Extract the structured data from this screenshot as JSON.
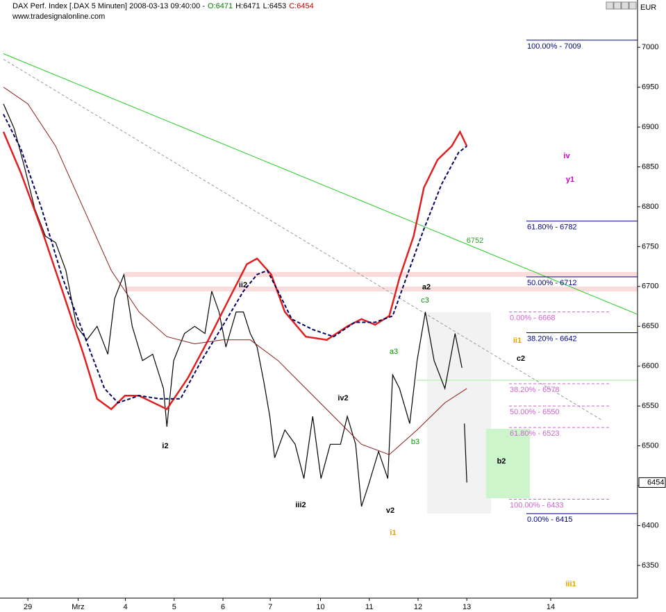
{
  "chart_data": {
    "type": "line",
    "title": "DAX Perf. Index [.DAX  5 Minuten] 2008-03-13 09:40:00 -",
    "ohlc": [
      {
        "label": "O:6471",
        "color": "#008000"
      },
      {
        "label": "H:6471",
        "color": "#000000"
      },
      {
        "label": "L:6453",
        "color": "#000000"
      },
      {
        "label": "C:6454",
        "color": "#cc0000"
      }
    ],
    "source": "www.tradesignalonline.com",
    "currency": "EUR",
    "last_price": 6454,
    "xlim": [
      -0.5,
      12.5
    ],
    "xticks": [
      {
        "value": 0,
        "label": "29"
      },
      {
        "value": 1.03,
        "label": "Mrz"
      },
      {
        "value": 2,
        "label": "4"
      },
      {
        "value": 3,
        "label": "5"
      },
      {
        "value": 4,
        "label": "6"
      },
      {
        "value": 4.97,
        "label": "7"
      },
      {
        "value": 6,
        "label": "10"
      },
      {
        "value": 7,
        "label": "11"
      },
      {
        "value": 8,
        "label": "12"
      },
      {
        "value": 9,
        "label": "13"
      },
      {
        "value": 10.72,
        "label": "14"
      }
    ],
    "ylim": [
      6309,
      7055
    ],
    "yticks": [
      6350,
      6400,
      6450,
      6500,
      6550,
      6600,
      6650,
      6700,
      6750,
      6800,
      6850,
      6900,
      6950,
      7000
    ],
    "series": [
      {
        "color": "#000000",
        "width": 1.2,
        "dash": false,
        "x": [
          -0.5,
          -0.28,
          -0.07,
          0.14,
          0.36,
          0.57,
          0.78,
          1.0,
          1.21,
          1.42,
          1.64,
          1.78,
          1.97,
          2.14,
          2.35,
          2.56,
          2.78,
          2.85,
          2.99,
          3.21,
          3.42,
          3.63,
          3.77,
          3.92,
          4.06,
          4.27,
          4.42,
          4.56,
          4.7,
          4.84,
          4.96,
          5.06,
          5.27,
          5.48,
          5.66,
          5.84,
          6.01,
          6.2,
          6.41,
          6.55,
          6.72,
          6.84,
          6.98,
          7.19,
          7.38,
          7.48,
          7.62,
          7.83,
          7.98,
          8.15,
          8.33,
          8.55,
          8.76,
          8.9,
          8.92,
          8.95,
          9.0
        ],
        "values": [
          6929,
          6898,
          6850,
          6798,
          6763,
          6755,
          6720,
          6650,
          6633,
          6650,
          6615,
          6685,
          6715,
          6650,
          6607,
          6615,
          6572,
          6524,
          6607,
          6641,
          6650,
          6641,
          6694,
          6668,
          6624,
          6668,
          6668,
          6641,
          6624,
          6580,
          6537,
          6485,
          6520,
          6502,
          6459,
          6537,
          6459,
          6502,
          6502,
          6537,
          6502,
          6424,
          6450,
          6493,
          6459,
          6589,
          6572,
          6528,
          6607,
          6668,
          6607,
          6572,
          6641,
          6598,
          null,
          6528,
          6454
        ]
      },
      {
        "color": "#e02020",
        "width": 2.5,
        "dash": false,
        "x": [
          -0.5,
          -0.14,
          0.28,
          0.71,
          1.14,
          1.42,
          1.71,
          1.99,
          2.28,
          2.85,
          3.28,
          3.7,
          4.13,
          4.49,
          4.7,
          4.99,
          5.27,
          5.7,
          6.13,
          6.55,
          6.84,
          7.12,
          7.41,
          7.62,
          7.91,
          8.12,
          8.4,
          8.69,
          8.86,
          9.0
        ],
        "values": [
          6894,
          6842,
          6772,
          6694,
          6615,
          6559,
          6546,
          6563,
          6563,
          6546,
          6585,
          6633,
          6685,
          6728,
          6735,
          6715,
          6668,
          6637,
          6633,
          6650,
          6659,
          6652,
          6663,
          6711,
          6763,
          6824,
          6859,
          6876,
          6894,
          6876
        ]
      },
      {
        "color": "#000060",
        "width": 2,
        "dash": true,
        "x": [
          -0.5,
          -0.14,
          0.28,
          0.71,
          1.14,
          1.57,
          1.85,
          2.28,
          2.71,
          3.13,
          3.56,
          3.99,
          4.42,
          4.7,
          4.91,
          5.13,
          5.41,
          5.84,
          6.27,
          6.7,
          7.12,
          7.48,
          7.76,
          8.12,
          8.48,
          8.83,
          9.0
        ],
        "values": [
          6916,
          6872,
          6798,
          6711,
          6641,
          6572,
          6554,
          6563,
          6559,
          6559,
          6607,
          6650,
          6694,
          6715,
          6720,
          6694,
          6659,
          6646,
          6637,
          6655,
          6655,
          6663,
          6711,
          6772,
          6828,
          6868,
          6876
        ]
      },
      {
        "color": "#8b1a1a",
        "width": 1,
        "dash": false,
        "x": [
          -0.5,
          0.0,
          0.57,
          1.14,
          1.71,
          2.28,
          2.85,
          3.42,
          3.99,
          4.56,
          5.13,
          5.7,
          6.27,
          6.84,
          7.41,
          7.98,
          8.55,
          9.0
        ],
        "values": [
          6950,
          6929,
          6876,
          6798,
          6720,
          6668,
          6637,
          6628,
          6633,
          6633,
          6607,
          6572,
          6537,
          6502,
          6489,
          6520,
          6554,
          6572
        ]
      }
    ],
    "trendlines": [
      {
        "color": "#22cc22",
        "dash": false,
        "x": [
          -0.5,
          12.5
        ],
        "values": [
          6992,
          6665
        ]
      },
      {
        "color": "#999999",
        "dash": true,
        "x": [
          -0.5,
          11.75
        ],
        "values": [
          6985,
          6533
        ]
      }
    ],
    "fib_levels": [
      {
        "label": "100.00% - 7009",
        "value": 7009,
        "color": "#00008b",
        "dash": false
      },
      {
        "label": "61.80% - 6782",
        "value": 6782,
        "color": "#00008b",
        "dash": false
      },
      {
        "label": "50.00% - 6712",
        "value": 6712,
        "color": "#00008b",
        "dash": false
      },
      {
        "label": "38.20% - 6642",
        "value": 6642,
        "color": "#00008b",
        "dash": false
      },
      {
        "label": "0.00% - 6415",
        "value": 6415,
        "color": "#00008b",
        "dash": false
      },
      {
        "label": "0.00% - 6668",
        "value": 6668,
        "color": "#cc66cc",
        "dash": true
      },
      {
        "label": "38.20% - 6578",
        "value": 6578,
        "color": "#cc66cc",
        "dash": true
      },
      {
        "label": "50.00% - 6550",
        "value": 6550,
        "color": "#cc66cc",
        "dash": true
      },
      {
        "label": "61.80% - 6523",
        "value": 6523,
        "color": "#cc66cc",
        "dash": true
      },
      {
        "label": "100.00% - 6433",
        "value": 6433,
        "color": "#cc66cc",
        "dash": true
      }
    ],
    "annotations": [
      {
        "text": "i2",
        "color": "#000000"
      },
      {
        "text": "ii2",
        "color": "#000000"
      },
      {
        "text": "iii2",
        "color": "#000000"
      },
      {
        "text": "iv2",
        "color": "#000000"
      },
      {
        "text": "v2",
        "color": "#000000"
      },
      {
        "text": "a2",
        "color": "#000000"
      },
      {
        "text": "b2",
        "color": "#000000"
      },
      {
        "text": "c2",
        "color": "#000000"
      },
      {
        "text": "a3",
        "color": "#009900"
      },
      {
        "text": "b3",
        "color": "#009900"
      },
      {
        "text": "c3",
        "color": "#009900"
      },
      {
        "text": "i1",
        "color": "#e8a000"
      },
      {
        "text": "ii1",
        "color": "#e8a000"
      },
      {
        "text": "iii1",
        "color": "#e8a000"
      },
      {
        "text": "iv",
        "color": "#cc00cc"
      },
      {
        "text": "y1",
        "color": "#cc00cc"
      },
      {
        "text": "6752",
        "color": "#22aa22"
      }
    ]
  }
}
